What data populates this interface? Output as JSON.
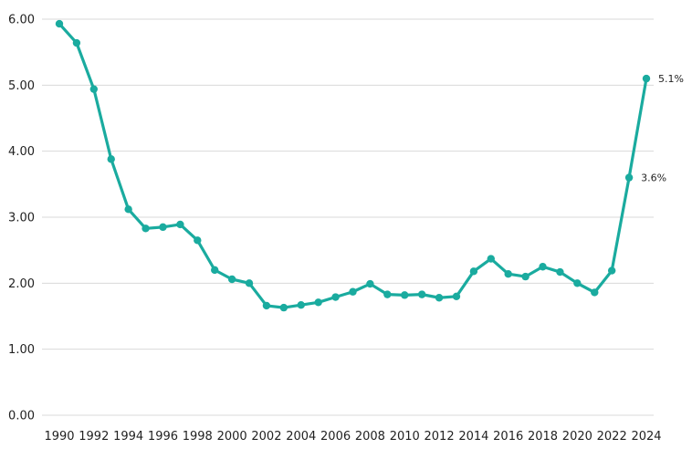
{
  "chart_data": {
    "type": "line",
    "title": "",
    "xlabel": "",
    "ylabel": "",
    "x": [
      1990,
      1991,
      1992,
      1993,
      1994,
      1995,
      1996,
      1997,
      1998,
      1999,
      2000,
      2001,
      2002,
      2003,
      2004,
      2005,
      2006,
      2007,
      2008,
      2009,
      2010,
      2011,
      2012,
      2013,
      2014,
      2015,
      2016,
      2017,
      2018,
      2019,
      2020,
      2021,
      2022,
      2023,
      2024
    ],
    "series": [
      {
        "values": [
          5.93,
          5.64,
          4.94,
          3.88,
          3.12,
          2.83,
          2.85,
          2.89,
          2.65,
          2.2,
          2.06,
          2.0,
          1.66,
          1.63,
          1.67,
          1.71,
          1.79,
          1.87,
          1.99,
          1.83,
          1.82,
          1.83,
          1.78,
          1.8,
          2.18,
          2.37,
          2.14,
          2.1,
          2.25,
          2.17,
          2.0,
          1.86,
          2.19,
          3.6,
          5.1
        ]
      }
    ],
    "ylim": [
      0,
      6
    ],
    "yticks": [
      "0.00",
      "1.00",
      "2.00",
      "3.00",
      "4.00",
      "5.00",
      "6.00"
    ],
    "xticks": [
      "1990",
      "1992",
      "1994",
      "1996",
      "1998",
      "2000",
      "2002",
      "2004",
      "2006",
      "2008",
      "2010",
      "2012",
      "2014",
      "2016",
      "2018",
      "2020",
      "2022",
      "2024"
    ],
    "grid": true,
    "legend": "none",
    "line_color": "#1aab9f",
    "annotations": [
      {
        "x": 2023,
        "text": "3.6%"
      },
      {
        "x": 2024,
        "text": "5.1%"
      }
    ]
  }
}
